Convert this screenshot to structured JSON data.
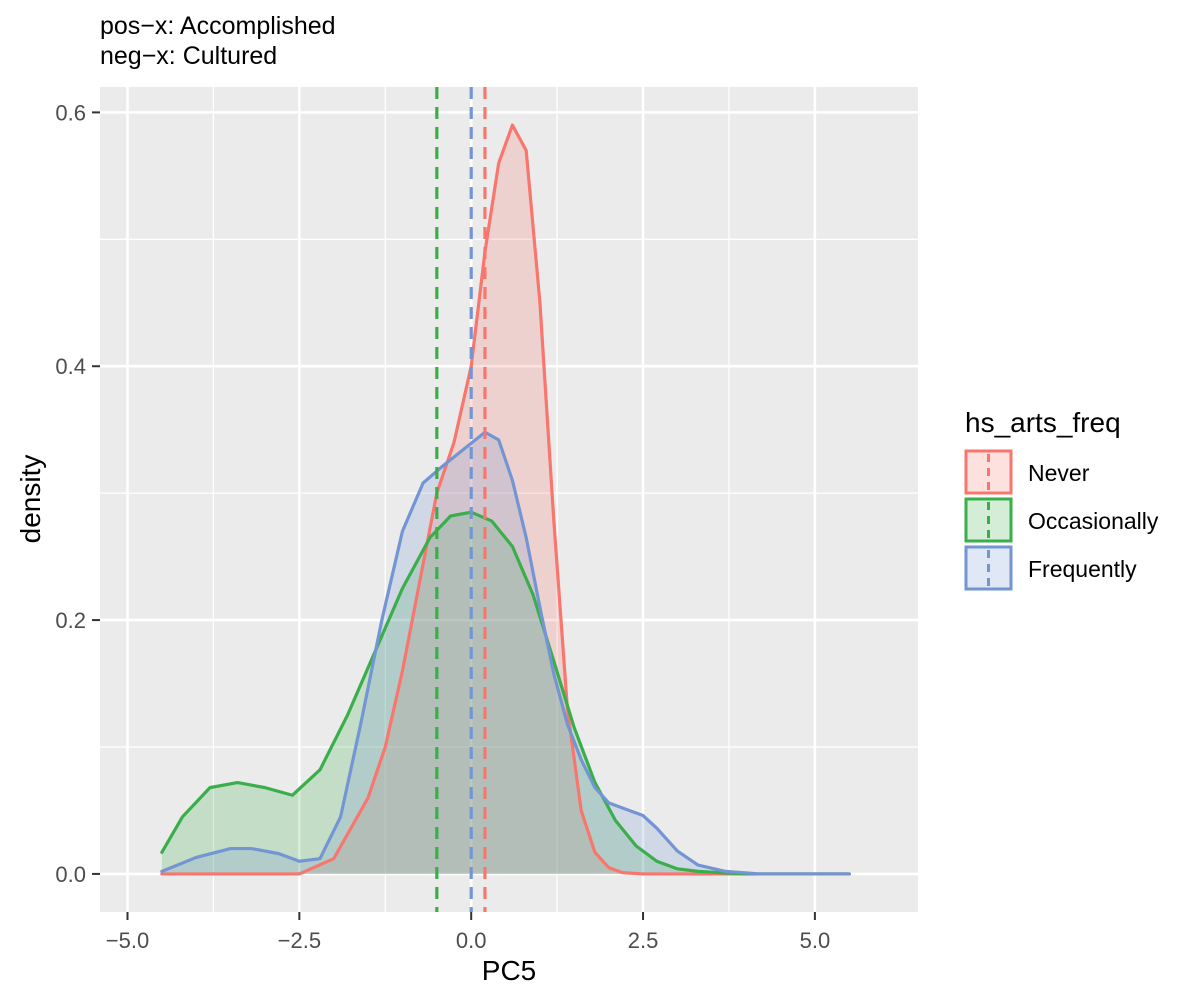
{
  "title_lines": [
    "pos−x: Accomplished",
    "neg−x: Cultured"
  ],
  "chart_data": {
    "type": "area",
    "subtype": "density",
    "xlabel": "PC5",
    "ylabel": "density",
    "xlim": [
      -5.4,
      6.5
    ],
    "ylim": [
      -0.03,
      0.62
    ],
    "x_ticks": [
      -5.0,
      -2.5,
      0.0,
      2.5,
      5.0
    ],
    "x_tick_labels": [
      "−5.0",
      "−2.5",
      "0.0",
      "2.5",
      "5.0"
    ],
    "y_ticks": [
      0.0,
      0.2,
      0.4,
      0.6
    ],
    "y_tick_labels": [
      "0.0",
      "0.2",
      "0.4",
      "0.6"
    ],
    "grid": true,
    "legend": {
      "title": "hs_arts_freq",
      "position": "right"
    },
    "series": [
      {
        "name": "Never",
        "color": "#F8766D",
        "mean_line": 0.2,
        "x": [
          -4.5,
          -3.0,
          -2.5,
          -2.0,
          -1.5,
          -1.25,
          -1.0,
          -0.75,
          -0.5,
          -0.25,
          0.0,
          0.2,
          0.4,
          0.6,
          0.8,
          1.0,
          1.2,
          1.4,
          1.6,
          1.8,
          2.0,
          2.2,
          2.5,
          3.0,
          5.5
        ],
        "y": [
          0.0,
          0.0,
          0.0,
          0.012,
          0.06,
          0.1,
          0.16,
          0.23,
          0.3,
          0.34,
          0.4,
          0.49,
          0.56,
          0.59,
          0.57,
          0.45,
          0.28,
          0.13,
          0.05,
          0.017,
          0.005,
          0.001,
          0.0,
          0.0,
          0.0
        ]
      },
      {
        "name": "Occasionally",
        "color": "#3AAE4B",
        "mean_line": -0.5,
        "x": [
          -4.5,
          -4.2,
          -3.8,
          -3.4,
          -3.0,
          -2.6,
          -2.2,
          -1.8,
          -1.4,
          -1.0,
          -0.6,
          -0.3,
          0.0,
          0.3,
          0.6,
          0.9,
          1.2,
          1.5,
          1.8,
          2.1,
          2.4,
          2.7,
          3.0,
          3.3,
          3.6,
          4.0,
          5.5
        ],
        "y": [
          0.017,
          0.045,
          0.068,
          0.072,
          0.068,
          0.062,
          0.082,
          0.125,
          0.175,
          0.225,
          0.265,
          0.282,
          0.285,
          0.278,
          0.258,
          0.22,
          0.168,
          0.115,
          0.072,
          0.042,
          0.022,
          0.01,
          0.004,
          0.002,
          0.001,
          0.0,
          0.0
        ]
      },
      {
        "name": "Frequently",
        "color": "#7395D3",
        "mean_line": 0.0,
        "x": [
          -4.5,
          -4.0,
          -3.5,
          -3.2,
          -2.8,
          -2.5,
          -2.2,
          -1.9,
          -1.6,
          -1.3,
          -1.0,
          -0.7,
          -0.4,
          -0.1,
          0.2,
          0.4,
          0.6,
          0.8,
          1.0,
          1.2,
          1.4,
          1.6,
          1.8,
          2.0,
          2.3,
          2.5,
          2.7,
          3.0,
          3.3,
          3.7,
          4.2,
          5.5
        ],
        "y": [
          0.002,
          0.013,
          0.02,
          0.02,
          0.016,
          0.01,
          0.012,
          0.045,
          0.12,
          0.2,
          0.27,
          0.308,
          0.322,
          0.335,
          0.348,
          0.342,
          0.31,
          0.265,
          0.21,
          0.158,
          0.118,
          0.09,
          0.068,
          0.056,
          0.05,
          0.046,
          0.036,
          0.018,
          0.007,
          0.002,
          0.0,
          0.0
        ]
      }
    ]
  }
}
